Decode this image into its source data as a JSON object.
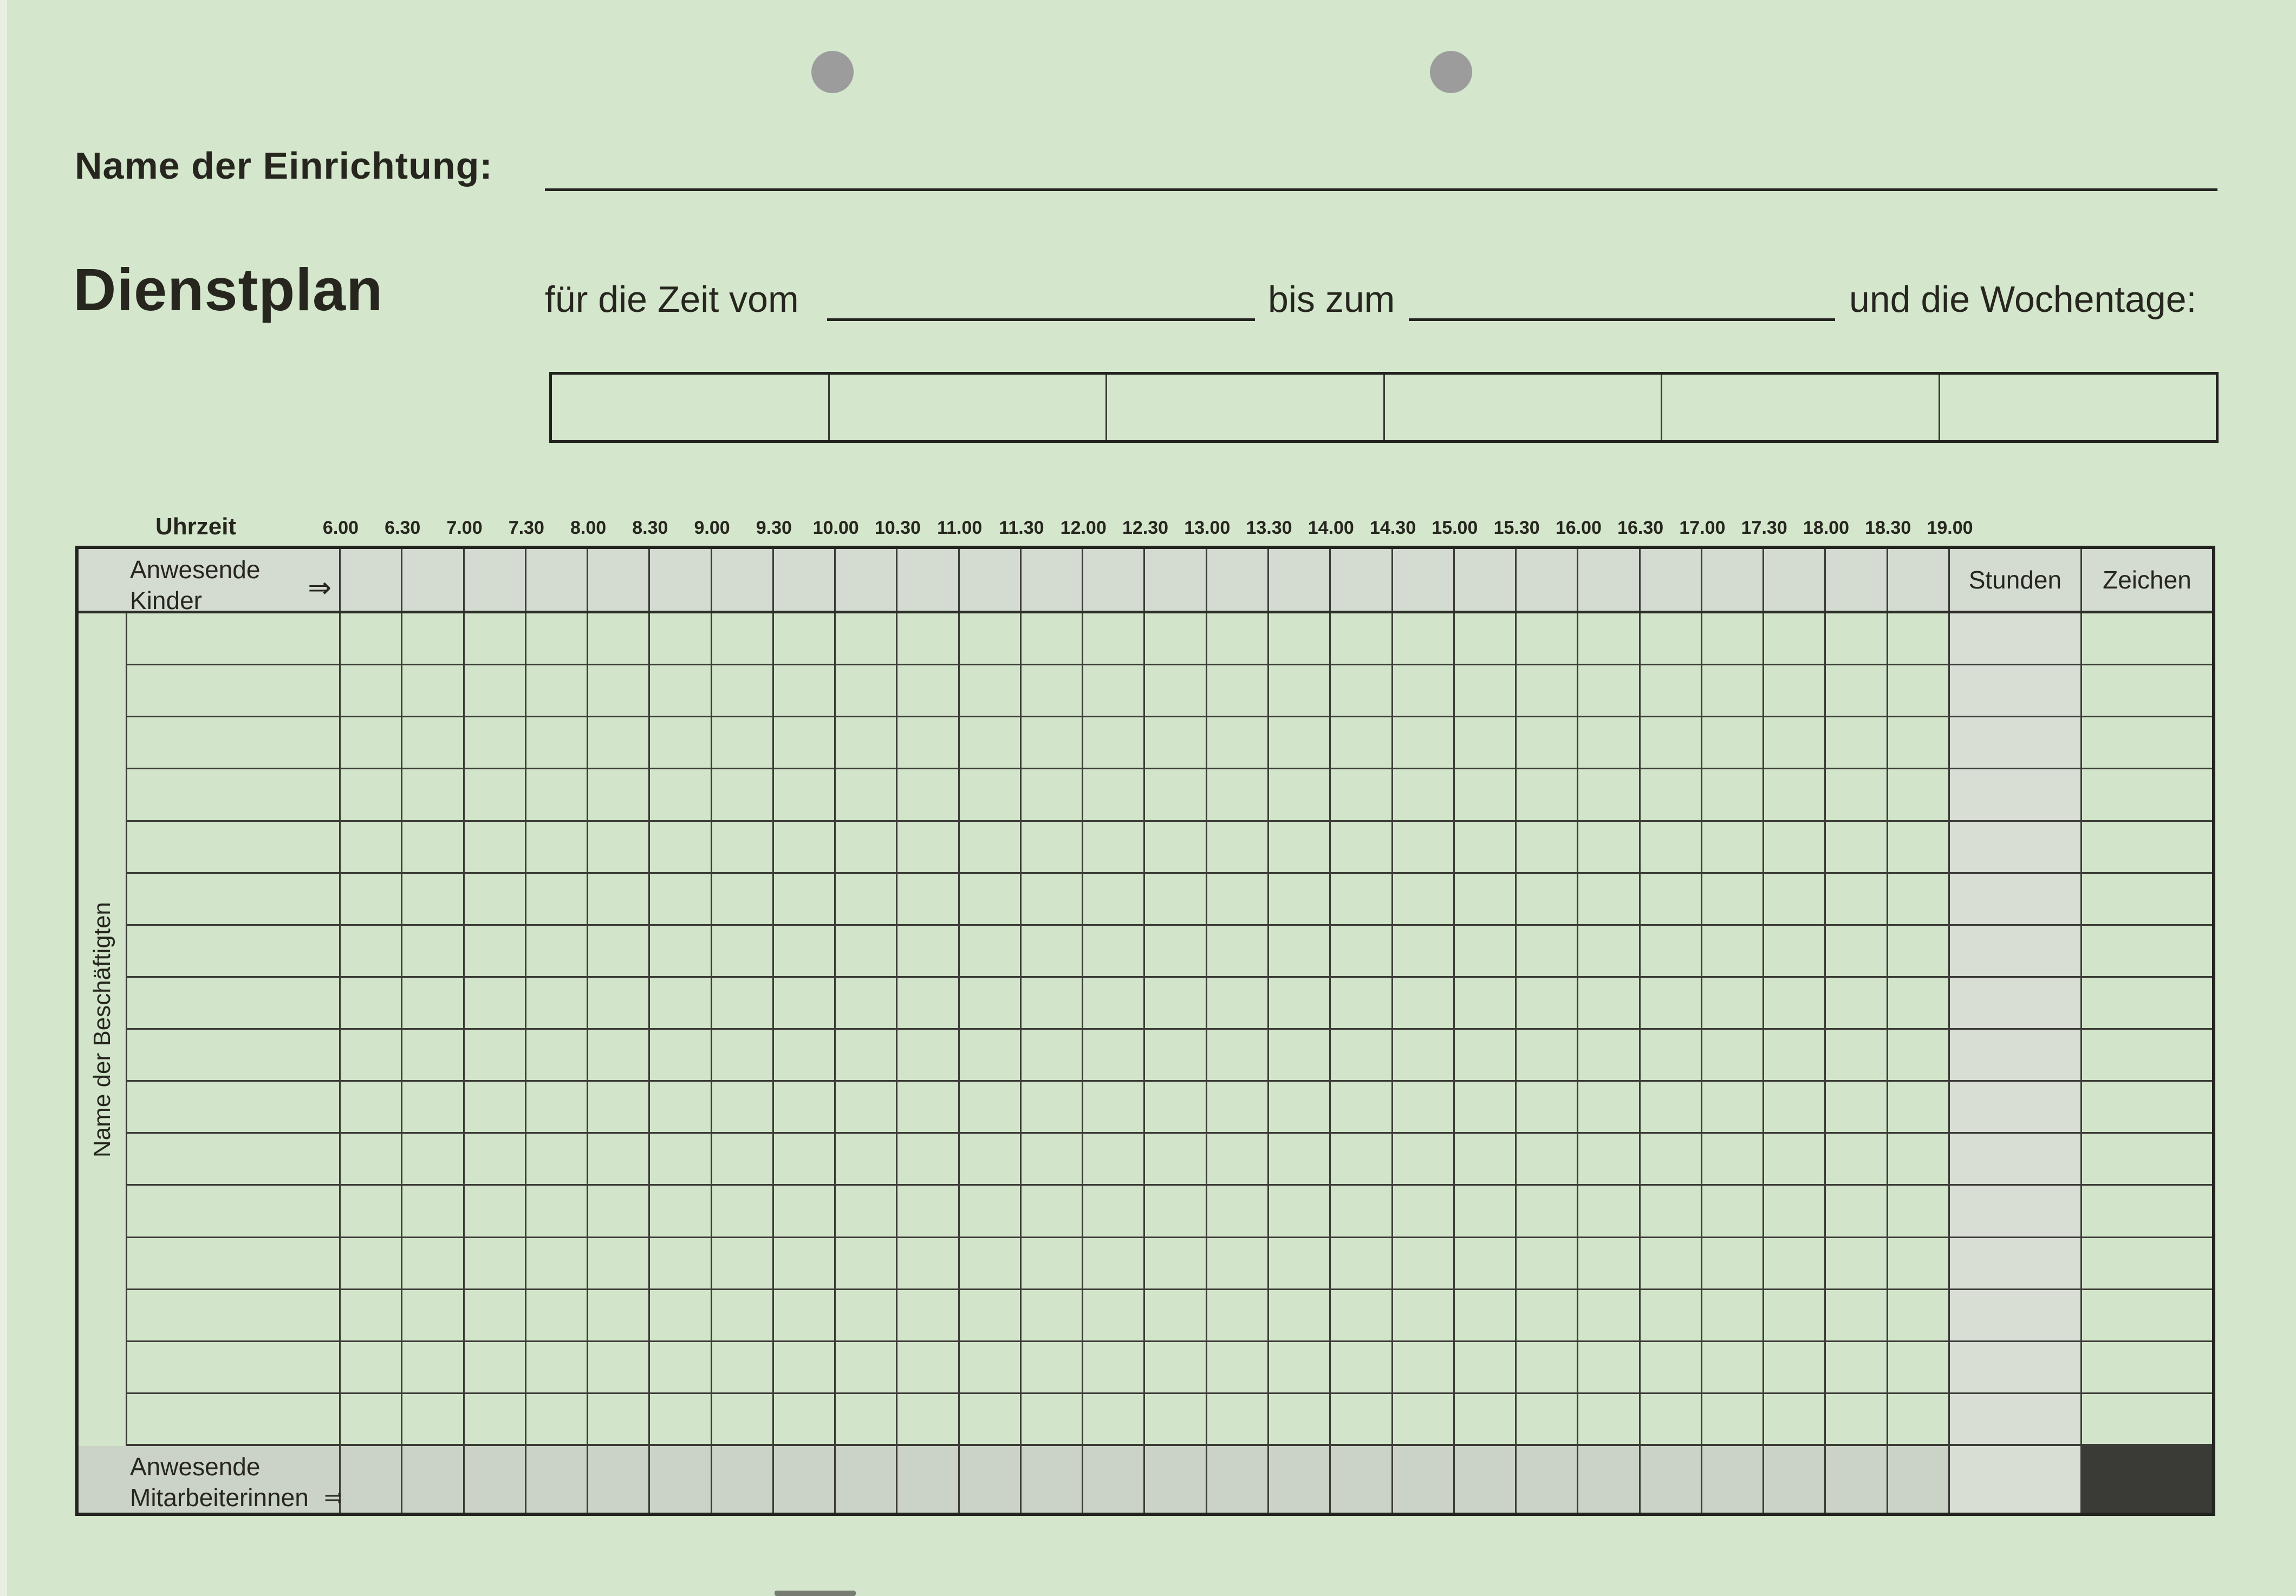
{
  "form": {
    "facility_label": "Name der Einrichtung:",
    "title": "Dienstplan",
    "subtitle_from": "für die Zeit vom",
    "subtitle_to": "bis zum",
    "subtitle_weekdays": "und die Wochentage:",
    "uhrzeit_label": "Uhrzeit"
  },
  "time_labels": [
    "6.00",
    "6.30",
    "7.00",
    "7.30",
    "8.00",
    "8.30",
    "9.00",
    "9.30",
    "10.00",
    "10.30",
    "11.00",
    "11.30",
    "12.00",
    "12.30",
    "13.00",
    "13.30",
    "14.00",
    "14.30",
    "15.00",
    "15.30",
    "16.00",
    "16.30",
    "17.00",
    "17.30",
    "18.00",
    "18.30",
    "19.00"
  ],
  "weekday_box_count": 6,
  "table": {
    "header_left": {
      "line1": "Anwesende",
      "line2": "Kinder",
      "arrow": "⇒"
    },
    "stunden_label": "Stunden",
    "zeichen_label": "Zeichen",
    "side_label": "Name der Beschäftigten",
    "bottom_left": {
      "line1": "Anwesende",
      "line2": "Mitarbeiterinnen",
      "arrow": "⇒"
    },
    "body_row_count": 16,
    "time_column_count": 26
  },
  "colors": {
    "paper": "#d4e6cb",
    "grid_cell": "#d2e4c9",
    "header_row": "#d4dbd0",
    "bottom_row": "#cad3c5",
    "stunden_column": "#d8ded4",
    "line": "#3b3b37",
    "border": "#23231f",
    "filled_cell": "#3a3a36",
    "hole_punch": "#9c9c9c",
    "ink": "#26261f"
  }
}
